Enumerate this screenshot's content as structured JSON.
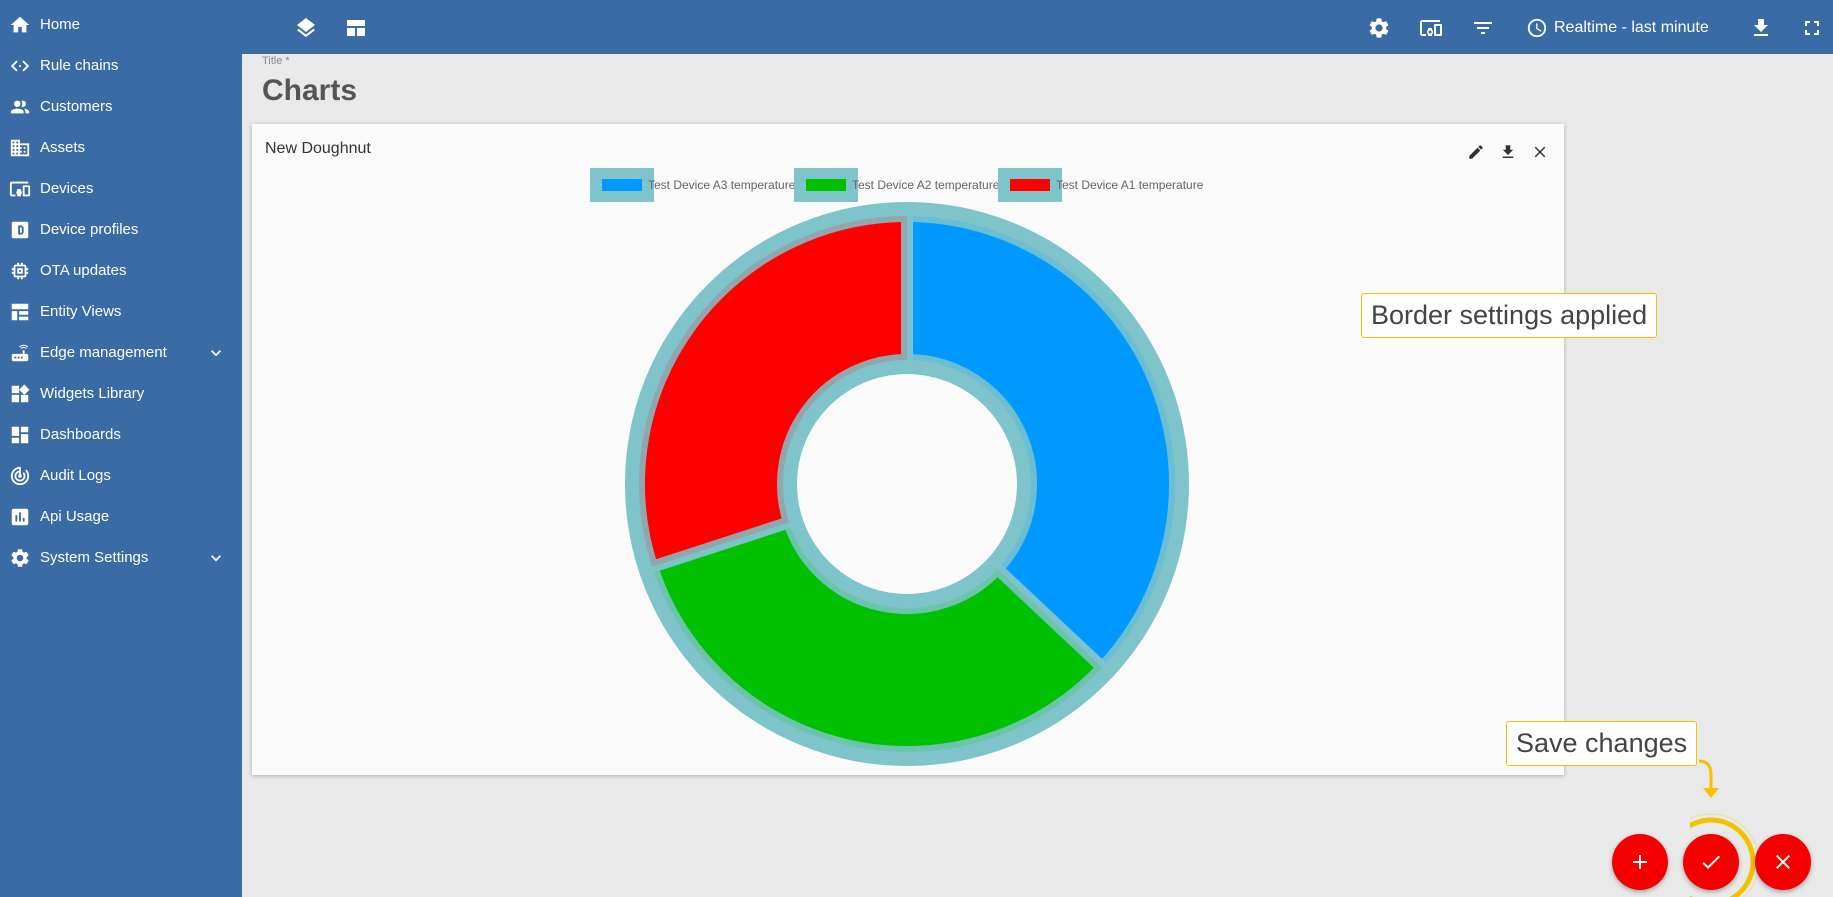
{
  "sidebar": {
    "items": [
      {
        "label": "Home",
        "icon": "home-icon",
        "expandable": false
      },
      {
        "label": "Rule chains",
        "icon": "code-icon",
        "expandable": false
      },
      {
        "label": "Customers",
        "icon": "people-icon",
        "expandable": false
      },
      {
        "label": "Assets",
        "icon": "domain-icon",
        "expandable": false
      },
      {
        "label": "Devices",
        "icon": "devices-icon",
        "expandable": false
      },
      {
        "label": "Device profiles",
        "icon": "device-profile-icon",
        "expandable": false
      },
      {
        "label": "OTA updates",
        "icon": "memory-icon",
        "expandable": false
      },
      {
        "label": "Entity Views",
        "icon": "view-quilt-icon",
        "expandable": false
      },
      {
        "label": "Edge management",
        "icon": "router-icon",
        "expandable": true
      },
      {
        "label": "Widgets Library",
        "icon": "widgets-icon",
        "expandable": false
      },
      {
        "label": "Dashboards",
        "icon": "dashboard-icon",
        "expandable": false
      },
      {
        "label": "Audit Logs",
        "icon": "track-changes-icon",
        "expandable": false
      },
      {
        "label": "Api Usage",
        "icon": "insert-chart-icon",
        "expandable": false
      },
      {
        "label": "System Settings",
        "icon": "settings-icon",
        "expandable": true
      }
    ]
  },
  "topbar": {
    "time_window": "Realtime - last minute"
  },
  "dashboard": {
    "title_label": "Title *",
    "title": "Charts"
  },
  "widget": {
    "title": "New Doughnut",
    "chart_data": {
      "type": "pie",
      "variant": "doughnut",
      "series": [
        {
          "name": "Test Device A3 temperature",
          "value": 37,
          "color": "#0099ff"
        },
        {
          "name": "Test Device A2 temperature",
          "value": 33,
          "color": "#00c000"
        },
        {
          "name": "Test Device A1 temperature",
          "value": 30,
          "color": "#ff0000"
        }
      ],
      "legend": "top-center",
      "border_color": "#7fc4cb"
    }
  },
  "callouts": {
    "border": "Border settings applied",
    "save": "Save changes"
  },
  "colors": {
    "primary": "#3b6ba5",
    "accent": "#f50000",
    "highlight": "#f2c200"
  }
}
